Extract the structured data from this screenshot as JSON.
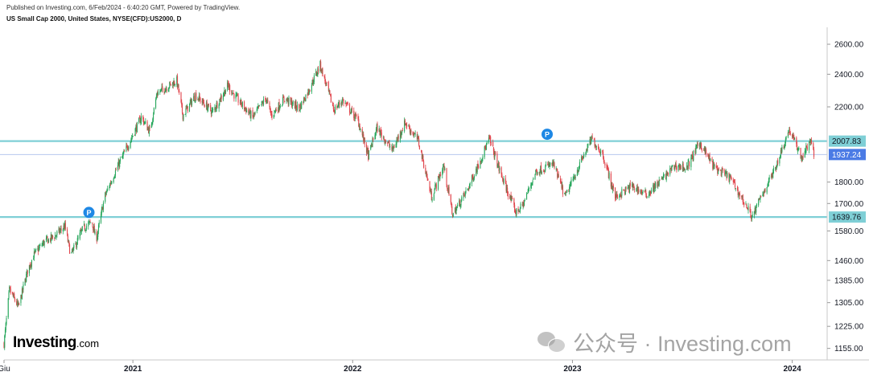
{
  "header": {
    "published": "Published on Investing.com, 6/Feb/2024 - 6:40:20 GMT, Powered by TradingView.",
    "title": "US Small Cap 2000, United States, NYSE(CFD):US2000, D"
  },
  "brand": {
    "main": "Investing",
    "suffix": ".com"
  },
  "watermark": {
    "text": "公众号 · Investing.com",
    "icon": "wechat-icon"
  },
  "chart_data": {
    "type": "candlestick",
    "title": "US Small Cap 2000, United States, NYSE(CFD):US2000, D",
    "y_scale": "log",
    "ylim": [
      1120,
      2720
    ],
    "x_range": [
      "2020-06-01",
      "2024-02-28"
    ],
    "x_ticks": [
      {
        "label": "Giu",
        "date": "2020-06-01"
      },
      {
        "label": "2021",
        "date": "2021-01-01"
      },
      {
        "label": "2022",
        "date": "2022-01-01"
      },
      {
        "label": "2023",
        "date": "2023-01-01"
      },
      {
        "label": "2024",
        "date": "2024-01-01"
      }
    ],
    "y_ticks": [
      2600,
      2400,
      2200,
      1800,
      1700,
      1580,
      1460,
      1385,
      1305,
      1225,
      1155
    ],
    "y_tick_labels": [
      "2600.00",
      "2400.00",
      "2200.00",
      "1800.00",
      "1700.00",
      "1580.00",
      "1460.00",
      "1385.00",
      "1305.00",
      "1225.00",
      "1155.00"
    ],
    "horizontal_levels": [
      {
        "value": 2007.83,
        "label": "2007.83",
        "color": "#7fcfd6",
        "tag_color": "#7fcfd6"
      },
      {
        "value": 1639.76,
        "label": "1639.76",
        "color": "#7fcfd6",
        "tag_color": "#7fcfd6"
      }
    ],
    "last_price": {
      "value": 1937.24,
      "label": "1937.24",
      "tag_color": "#4b7be5",
      "line_color": "#b7c7ee"
    },
    "markers": [
      {
        "label": "P",
        "date": "2020-10-20",
        "value": 1660
      },
      {
        "label": "P",
        "date": "2022-11-20",
        "value": 2045
      }
    ],
    "colors": {
      "up": "#26a65b",
      "down": "#e0434a"
    },
    "price_path": [
      [
        "2020-06-01",
        1170
      ],
      [
        "2020-06-10",
        1350
      ],
      [
        "2020-06-25",
        1290
      ],
      [
        "2020-07-10",
        1420
      ],
      [
        "2020-07-20",
        1480
      ],
      [
        "2020-08-05",
        1530
      ],
      [
        "2020-08-25",
        1560
      ],
      [
        "2020-09-10",
        1600
      ],
      [
        "2020-09-20",
        1480
      ],
      [
        "2020-10-10",
        1590
      ],
      [
        "2020-10-25",
        1620
      ],
      [
        "2020-11-01",
        1540
      ],
      [
        "2020-11-15",
        1730
      ],
      [
        "2020-12-01",
        1840
      ],
      [
        "2020-12-20",
        1960
      ],
      [
        "2021-01-15",
        2140
      ],
      [
        "2021-01-29",
        2060
      ],
      [
        "2021-02-10",
        2280
      ],
      [
        "2021-03-15",
        2360
      ],
      [
        "2021-03-25",
        2150
      ],
      [
        "2021-04-15",
        2270
      ],
      [
        "2021-05-13",
        2170
      ],
      [
        "2021-06-08",
        2330
      ],
      [
        "2021-06-20",
        2260
      ],
      [
        "2021-07-19",
        2140
      ],
      [
        "2021-08-10",
        2250
      ],
      [
        "2021-08-19",
        2150
      ],
      [
        "2021-09-10",
        2250
      ],
      [
        "2021-10-04",
        2190
      ],
      [
        "2021-10-20",
        2300
      ],
      [
        "2021-11-08",
        2460
      ],
      [
        "2021-12-01",
        2180
      ],
      [
        "2021-12-15",
        2240
      ],
      [
        "2022-01-10",
        2120
      ],
      [
        "2022-01-27",
        1930
      ],
      [
        "2022-02-10",
        2080
      ],
      [
        "2022-03-08",
        1960
      ],
      [
        "2022-03-29",
        2110
      ],
      [
        "2022-04-20",
        2010
      ],
      [
        "2022-05-12",
        1730
      ],
      [
        "2022-06-01",
        1880
      ],
      [
        "2022-06-16",
        1650
      ],
      [
        "2022-07-10",
        1760
      ],
      [
        "2022-08-16",
        2020
      ],
      [
        "2022-09-05",
        1830
      ],
      [
        "2022-09-29",
        1660
      ],
      [
        "2022-10-10",
        1690
      ],
      [
        "2022-11-01",
        1850
      ],
      [
        "2022-11-30",
        1890
      ],
      [
        "2022-12-20",
        1730
      ],
      [
        "2023-01-15",
        1900
      ],
      [
        "2023-02-02",
        2020
      ],
      [
        "2023-02-20",
        1940
      ],
      [
        "2023-03-13",
        1730
      ],
      [
        "2023-04-10",
        1780
      ],
      [
        "2023-05-04",
        1740
      ],
      [
        "2023-06-01",
        1820
      ],
      [
        "2023-06-20",
        1880
      ],
      [
        "2023-07-10",
        1870
      ],
      [
        "2023-07-31",
        2000
      ],
      [
        "2023-08-25",
        1870
      ],
      [
        "2023-09-20",
        1820
      ],
      [
        "2023-10-27",
        1640
      ],
      [
        "2023-11-10",
        1730
      ],
      [
        "2023-12-01",
        1850
      ],
      [
        "2023-12-27",
        2070
      ],
      [
        "2024-01-17",
        1920
      ],
      [
        "2024-01-31",
        2010
      ],
      [
        "2024-02-06",
        1937
      ]
    ]
  }
}
